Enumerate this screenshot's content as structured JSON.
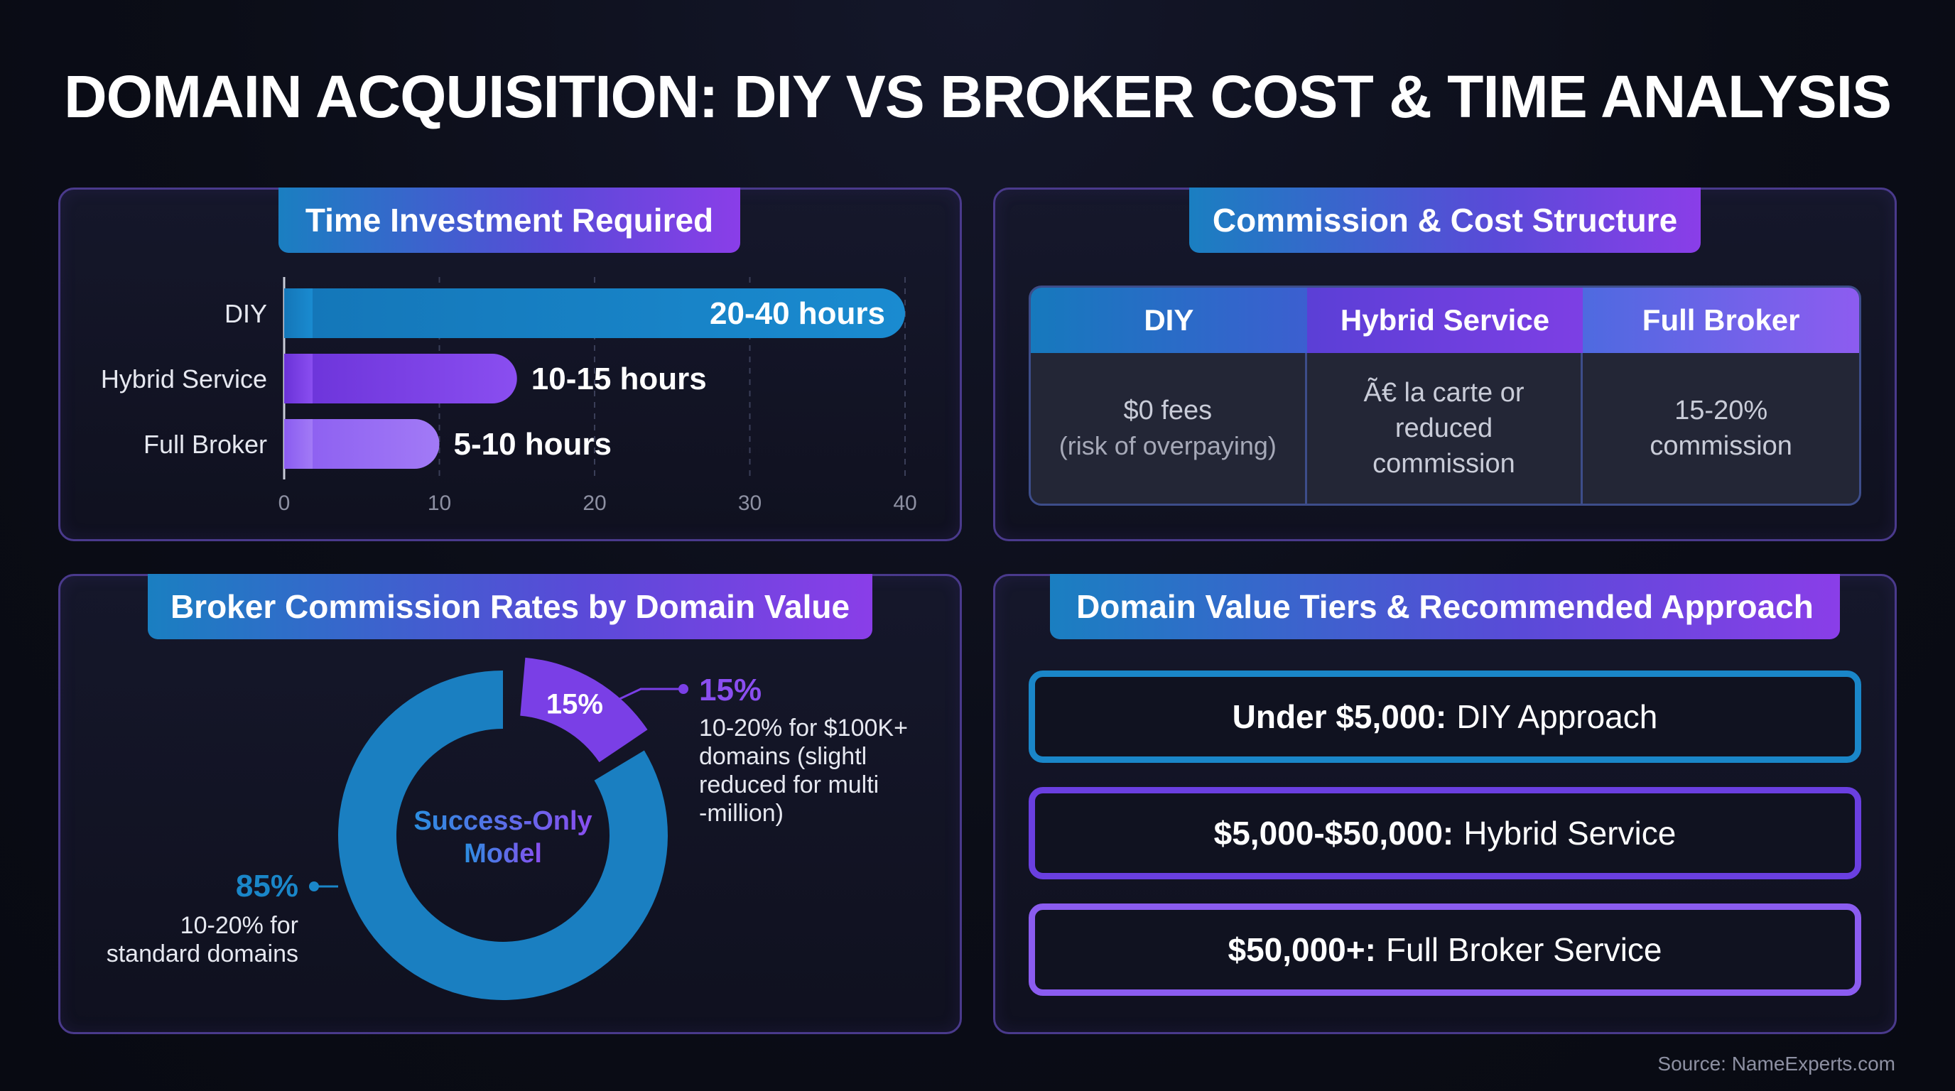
{
  "title": "DOMAIN ACQUISITION: DIY VS BROKER COST & TIME ANALYSIS",
  "panels": {
    "time": "Time Investment Required",
    "commission": "Commission & Cost Structure",
    "rates": "Broker Commission Rates by Domain Value",
    "tiers": "Domain Value Tiers & Recommended Approach"
  },
  "commission_table": {
    "headers": [
      "DIY",
      "Hybrid Service",
      "Full Broker"
    ],
    "cells": [
      {
        "main": "$0 fees",
        "sub": "(risk of overpaying)"
      },
      {
        "main": "Ã€ la carte or reduced commission",
        "sub": ""
      },
      {
        "main": "15-20% commission",
        "sub": ""
      }
    ]
  },
  "tiers": [
    {
      "bold": "Under $5,000:",
      "text": "DIY Approach",
      "color": "#1a86c8"
    },
    {
      "bold": "$5,000-$50,000:",
      "text": "Hybrid Service",
      "color": "#6a3fe0"
    },
    {
      "bold": "$50,000+:",
      "text": "Full Broker Service",
      "color": "#8b5cf0"
    }
  ],
  "source": "Source: NameExperts.com",
  "chart_data": [
    {
      "type": "bar",
      "orientation": "horizontal",
      "title": "Time Investment Required",
      "categories": [
        "DIY",
        "Hybrid Service",
        "Full Broker"
      ],
      "values": [
        40,
        15,
        10
      ],
      "data_labels": [
        "20-40 hours",
        "10-15 hours",
        "5-10 hours"
      ],
      "colors": [
        "#1a86c8",
        "#7a3fe6",
        "#9a6af2"
      ],
      "xlim": [
        0,
        40
      ],
      "xticks": [
        0,
        10,
        20,
        30,
        40
      ],
      "grid": true
    },
    {
      "type": "pie",
      "title": "Broker Commission Rates by Domain Value",
      "center_label": "Success-Only Model",
      "slices": [
        {
          "value": 85,
          "label": "85%",
          "description": "10-20% for standard domains",
          "color": "#1a7fc1"
        },
        {
          "value": 15,
          "label": "15%",
          "description": "10-20% for $100K+ domains (slightly reduced for multi-million)",
          "color": "#7a3fe6"
        }
      ]
    }
  ]
}
